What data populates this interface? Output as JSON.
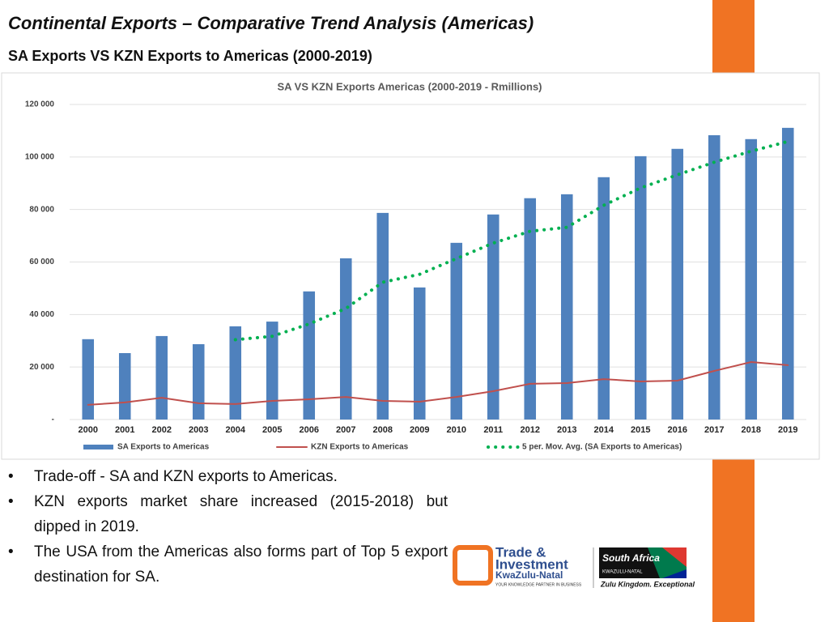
{
  "header": {
    "title": "Continental Exports – Comparative Trend Analysis (Americas)",
    "subtitle": "SA Exports VS KZN Exports to Americas (2000-2019)"
  },
  "chart_data": {
    "type": "bar",
    "title": "SA VS KZN Exports Americas (2000-2019 - Rmillions)",
    "categories": [
      "2000",
      "2001",
      "2002",
      "2003",
      "2004",
      "2005",
      "2006",
      "2007",
      "2008",
      "2009",
      "2010",
      "2011",
      "2012",
      "2013",
      "2014",
      "2015",
      "2016",
      "2017",
      "2018",
      "2019"
    ],
    "series": [
      {
        "name": "SA Exports to Americas",
        "type": "bar",
        "color": "#4f81bd",
        "values": [
          30600,
          25300,
          31800,
          28700,
          35500,
          37300,
          48800,
          61400,
          78700,
          50300,
          67300,
          78100,
          84300,
          85800,
          92300,
          100300,
          103100,
          108300,
          106800,
          111100
        ]
      },
      {
        "name": "KZN Exports to Americas",
        "type": "line",
        "color": "#c0504d",
        "values": [
          5600,
          6500,
          8300,
          6200,
          5900,
          7100,
          7700,
          8600,
          7100,
          6800,
          8600,
          10800,
          13600,
          13900,
          15400,
          14500,
          14800,
          18500,
          21900,
          20700
        ]
      },
      {
        "name": "5 per. Mov. Avg. (SA Exports to Americas)",
        "type": "line",
        "style": "dotted",
        "color": "#00b050",
        "values": [
          null,
          null,
          null,
          null,
          30400,
          31700,
          36400,
          42300,
          52300,
          55300,
          61300,
          67200,
          71700,
          73200,
          81600,
          88200,
          93200,
          98000,
          102200,
          105900
        ]
      }
    ],
    "ylim": [
      0,
      120000
    ],
    "yticks": [
      {
        "value": 0,
        "label": "-"
      },
      {
        "value": 20000,
        "label": "20 000"
      },
      {
        "value": 40000,
        "label": "40 000"
      },
      {
        "value": 60000,
        "label": "60 000"
      },
      {
        "value": 80000,
        "label": "80 000"
      },
      {
        "value": 100000,
        "label": "100 000"
      },
      {
        "value": 120000,
        "label": "120 000"
      }
    ],
    "grid": true,
    "legend": "bottom"
  },
  "bullets": [
    "Trade-off - SA and KZN exports to Americas.",
    "KZN exports market share increased (2015-2018) but dipped in 2019.",
    "The USA from the Americas also forms part of Top 5 export destination for SA."
  ],
  "logos": {
    "tik_line1": "Trade &",
    "tik_line2": "Investment",
    "tik_line3": "KwaZulu-Natal",
    "tik_tagline": "YOUR KNOWLEDGE PARTNER IN BUSINESS",
    "sa_brand": "South Africa",
    "sa_region": "KWAZULU-NATAL",
    "sa_tagline": "Zulu Kingdom. Exceptional"
  }
}
